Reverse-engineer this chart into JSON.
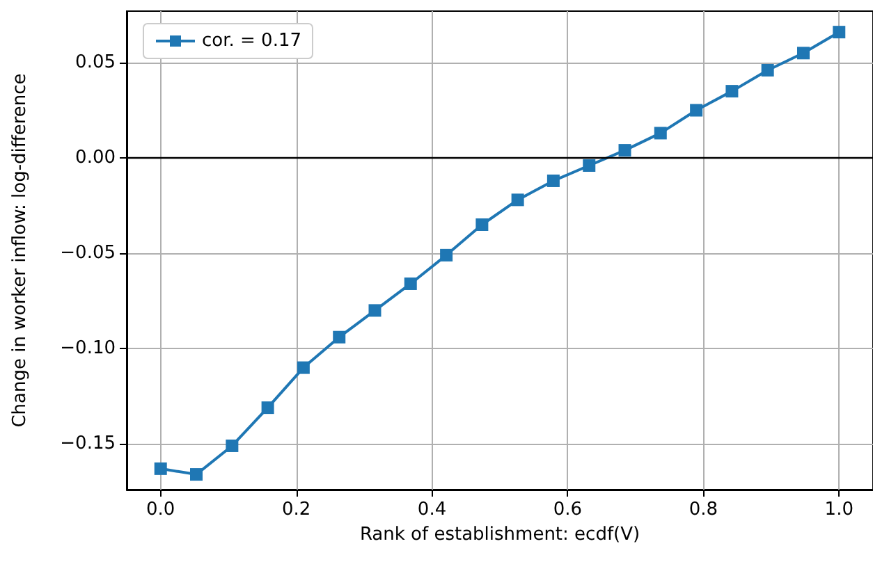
{
  "chart_data": {
    "type": "line",
    "xlabel": "Rank of establishment: ecdf(V)",
    "ylabel": "Change in worker inflow: log-difference",
    "x": [
      0,
      0.0526,
      0.1053,
      0.1579,
      0.2105,
      0.2632,
      0.3158,
      0.3684,
      0.4211,
      0.4737,
      0.5263,
      0.5789,
      0.6316,
      0.6842,
      0.7368,
      0.7895,
      0.8421,
      0.8947,
      0.9474,
      1.0
    ],
    "series": [
      {
        "name": "cor. = 0.17",
        "color": "#1f77b4",
        "values": [
          -0.163,
          -0.166,
          -0.151,
          -0.131,
          -0.11,
          -0.094,
          -0.08,
          -0.066,
          -0.051,
          -0.035,
          -0.022,
          -0.012,
          -0.004,
          0.004,
          0.013,
          0.025,
          0.035,
          0.046,
          0.055,
          0.066
        ]
      }
    ],
    "xlim": [
      -0.05,
      1.05
    ],
    "xticks": [
      {
        "value": 0,
        "label": "0.0"
      },
      {
        "value": 0.2,
        "label": "0.2"
      },
      {
        "value": 0.4,
        "label": "0.4"
      },
      {
        "value": 0.6,
        "label": "0.6"
      },
      {
        "value": 0.8,
        "label": "0.8"
      },
      {
        "value": 1,
        "label": "1.0"
      }
    ],
    "ylim": [
      -0.174,
      0.077
    ],
    "yticks": [
      {
        "value": -0.15,
        "label": "−0.15"
      },
      {
        "value": -0.1,
        "label": "−0.10"
      },
      {
        "value": -0.05,
        "label": "−0.05"
      },
      {
        "value": 0,
        "label": "0.00"
      },
      {
        "value": 0.05,
        "label": "0.05"
      }
    ],
    "ref_lines": [
      {
        "axis": "y",
        "value": 0,
        "color": "#000000"
      }
    ],
    "grid": true,
    "legend": "top left",
    "marker": "square",
    "line_style": "solid"
  }
}
